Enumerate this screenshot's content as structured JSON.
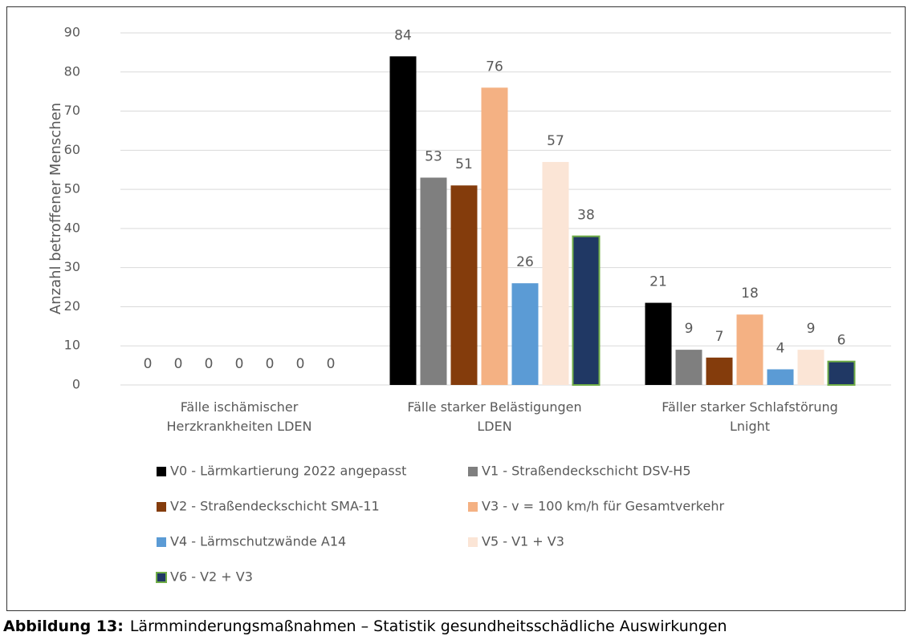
{
  "chart_data": {
    "type": "bar",
    "ylabel": "Anzahl betroffener Menschen",
    "categories": [
      "Fälle ischämischer Herzkrankheiten LDEN",
      "Fälle starker Belästigungen LDEN",
      "Fäller starker Schlafstörung Lnight"
    ],
    "series": [
      {
        "name": "V0 - Lärmkartierung 2022 angepasst",
        "color": "#000000",
        "values": [
          0,
          84,
          21
        ]
      },
      {
        "name": "V1 - Straßendeckschicht DSV-H5",
        "color": "#7f7f7f",
        "values": [
          0,
          53,
          9
        ]
      },
      {
        "name": "V2 - Straßendeckschicht SMA-11",
        "color": "#843c0c",
        "values": [
          0,
          51,
          7
        ]
      },
      {
        "name": "V3 - v = 100 km/h für Gesamtverkehr",
        "color": "#f4b183",
        "values": [
          0,
          76,
          18
        ]
      },
      {
        "name": "V4 - Lärmschutzwände A14",
        "color": "#5b9bd5",
        "values": [
          0,
          26,
          4
        ]
      },
      {
        "name": "V5 - V1 + V3",
        "color": "#fbe5d6",
        "values": [
          0,
          57,
          9
        ]
      },
      {
        "name": "V6 - V2 + V3",
        "color": "#203864",
        "edgecolor": "#70ad47",
        "values": [
          0,
          38,
          6
        ]
      }
    ],
    "ylim": [
      0,
      90
    ],
    "yticks": [
      0,
      10,
      20,
      30,
      40,
      50,
      60,
      70,
      80,
      90
    ],
    "grid": true,
    "legend": "bottom"
  },
  "caption": {
    "label": "Abbildung 13:",
    "text": "Lärmminderungsmaßnahmen – Statistik gesundheitsschädliche Auswirkungen"
  }
}
